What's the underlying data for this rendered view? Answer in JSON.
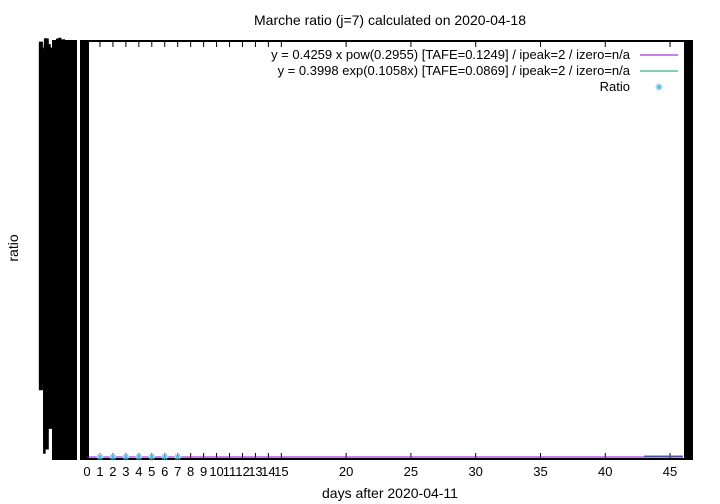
{
  "chart_data": {
    "type": "scatter",
    "title": "Marche ratio (j=7) calculated on 2020-04-18",
    "xlabel": "days after 2020-04-11",
    "ylabel": "ratio",
    "xlim": [
      0,
      46
    ],
    "x_ticks": [
      {
        "value": 0,
        "label": "0"
      },
      {
        "value": 1,
        "label": "1"
      },
      {
        "value": 2,
        "label": "2"
      },
      {
        "value": 3,
        "label": "3"
      },
      {
        "value": 4,
        "label": "4"
      },
      {
        "value": 5,
        "label": "5"
      },
      {
        "value": 6,
        "label": "6"
      },
      {
        "value": 7,
        "label": "7"
      },
      {
        "value": 8,
        "label": "8"
      },
      {
        "value": 9,
        "label": "9"
      },
      {
        "value": 10,
        "label": "10"
      },
      {
        "value": 11,
        "label": "11"
      },
      {
        "value": 12,
        "label": "12"
      },
      {
        "value": 13,
        "label": "13"
      },
      {
        "value": 14,
        "label": "14"
      },
      {
        "value": 15,
        "label": "15"
      },
      {
        "value": 20,
        "label": "20"
      },
      {
        "value": 25,
        "label": "25"
      },
      {
        "value": 30,
        "label": "30"
      },
      {
        "value": 35,
        "label": "35"
      },
      {
        "value": 40,
        "label": "40"
      },
      {
        "value": 45,
        "label": "45"
      }
    ],
    "y_axis_note": "y tick labels overprinted (illegible black block)",
    "grid": false,
    "legend_position": "top-right",
    "series": [
      {
        "name": "y = 0.4259 x pow(0.2955)  [TAFE=0.1249] / ipeak=2 / izero=n/a",
        "kind": "line",
        "color": "#9400d3"
      },
      {
        "name": "y = 0.3998 exp(0.1058x)  [TAFE=0.0869] / ipeak=2 / izero=n/a",
        "kind": "line",
        "color": "#009e73"
      },
      {
        "name": "Ratio",
        "kind": "points",
        "marker": "asterisk",
        "color": "#56b4e9",
        "x": [
          1,
          2,
          3,
          4,
          5,
          6,
          7
        ],
        "y": [
          0,
          0,
          0,
          0,
          0,
          0,
          0
        ]
      }
    ]
  }
}
